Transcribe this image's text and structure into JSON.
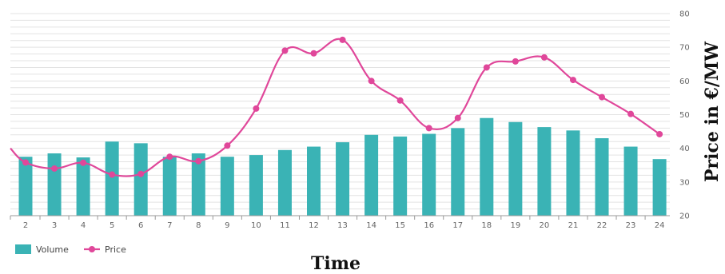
{
  "chart_data": {
    "type": "bar",
    "categories": [
      "2",
      "3",
      "4",
      "5",
      "6",
      "7",
      "8",
      "9",
      "10",
      "11",
      "12",
      "13",
      "14",
      "15",
      "16",
      "17",
      "18",
      "19",
      "20",
      "21",
      "22",
      "23",
      "24"
    ],
    "series": [
      {
        "name": "Volume",
        "type": "bar",
        "color": "#3ab3b5",
        "values": [
          37.5,
          38.5,
          37.3,
          42,
          41.5,
          37.5,
          38.5,
          37.5,
          38,
          39.5,
          40.5,
          41.8,
          44,
          43.5,
          44.3,
          46,
          49,
          47.8,
          46.3,
          45.3,
          43,
          40.5,
          36.8
        ]
      },
      {
        "name": "Price",
        "type": "line",
        "color": "#e0479a",
        "values": [
          35.8,
          34,
          35.7,
          32.2,
          32.4,
          37.5,
          36.2,
          40.8,
          51.8,
          69,
          68.2,
          72.2,
          60,
          54.2,
          46,
          49,
          64,
          65.8,
          67,
          60.3,
          55.2,
          50.2,
          44.2
        ]
      }
    ],
    "price_left_edge_value": 40,
    "ylim": [
      20,
      80
    ],
    "yticks": [
      20,
      30,
      40,
      50,
      60,
      70,
      80
    ],
    "ylabel": "Price in €/MW",
    "xlabel": "Time",
    "grid": true,
    "legend_position": "bottom-left"
  }
}
